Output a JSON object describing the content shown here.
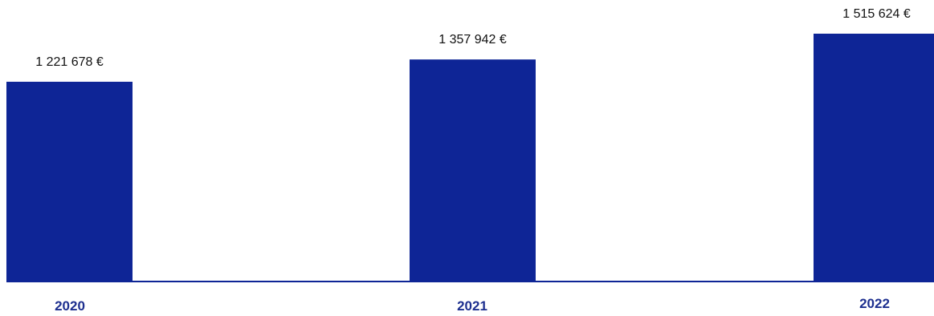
{
  "chart_data": {
    "type": "bar",
    "categories": [
      "2020",
      "2021",
      "2022"
    ],
    "values": [
      1221678,
      1357942,
      1515624
    ],
    "value_labels": [
      "1 221 678 €",
      "1 357 942 €",
      "1 515 624 €"
    ],
    "title": "",
    "xlabel": "",
    "ylabel": "",
    "ylim": [
      0,
      1515624
    ],
    "grid": false,
    "legend": "none",
    "colors": {
      "bar": "#0e2596",
      "axis": "#0e2596",
      "category_text": "#1d2f8f",
      "value_text": "#111111"
    }
  }
}
